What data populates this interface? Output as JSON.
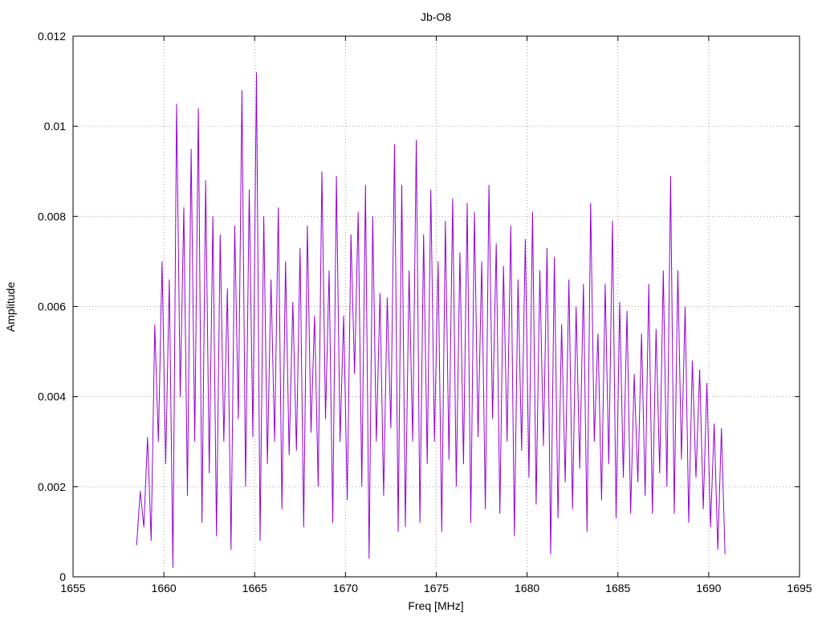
{
  "chart_data": {
    "type": "line",
    "title": "Jb-O8",
    "xlabel": "Freq [MHz]",
    "ylabel": "Amplitude",
    "xlim": [
      1655,
      1695
    ],
    "ylim": [
      0,
      0.012
    ],
    "xticks": [
      "1655",
      "1660",
      "1665",
      "1670",
      "1675",
      "1680",
      "1685",
      "1690",
      "1695"
    ],
    "xtick_values": [
      1655,
      1660,
      1665,
      1670,
      1675,
      1680,
      1685,
      1690,
      1695
    ],
    "yticks": [
      "0",
      "0.002",
      "0.004",
      "0.006",
      "0.008",
      "0.01",
      "0.012"
    ],
    "ytick_values": [
      0,
      0.002,
      0.004,
      0.006,
      0.008,
      0.01,
      0.012
    ],
    "grid": true,
    "series_color": "#9400d3",
    "series": [
      {
        "name": "Amplitude",
        "x_start": 1658.5,
        "x_step": 0.2,
        "values": [
          0.0007,
          0.0019,
          0.0011,
          0.0031,
          0.0008,
          0.0056,
          0.003,
          0.007,
          0.0025,
          0.0066,
          0.0002,
          0.0105,
          0.004,
          0.0082,
          0.0018,
          0.0095,
          0.003,
          0.0104,
          0.0012,
          0.0088,
          0.0023,
          0.008,
          0.0009,
          0.0076,
          0.003,
          0.0064,
          0.0006,
          0.0078,
          0.0035,
          0.0108,
          0.002,
          0.0086,
          0.0031,
          0.0112,
          0.0008,
          0.008,
          0.0025,
          0.0066,
          0.003,
          0.0082,
          0.0015,
          0.007,
          0.0027,
          0.0061,
          0.0028,
          0.0073,
          0.0011,
          0.0078,
          0.0032,
          0.0058,
          0.002,
          0.009,
          0.0035,
          0.0068,
          0.0012,
          0.0089,
          0.003,
          0.0058,
          0.0017,
          0.0076,
          0.0045,
          0.0081,
          0.002,
          0.0087,
          0.0004,
          0.008,
          0.003,
          0.0063,
          0.0018,
          0.0062,
          0.0033,
          0.0096,
          0.001,
          0.0087,
          0.0011,
          0.0068,
          0.003,
          0.0097,
          0.0012,
          0.0076,
          0.0025,
          0.0086,
          0.003,
          0.007,
          0.001,
          0.0079,
          0.0026,
          0.0084,
          0.002,
          0.0072,
          0.0025,
          0.0083,
          0.0012,
          0.0081,
          0.0031,
          0.007,
          0.0015,
          0.0087,
          0.0035,
          0.0074,
          0.0014,
          0.0069,
          0.003,
          0.0078,
          0.0009,
          0.0066,
          0.0028,
          0.0075,
          0.0022,
          0.0081,
          0.0016,
          0.0068,
          0.0029,
          0.0073,
          0.0005,
          0.0071,
          0.0013,
          0.0056,
          0.0021,
          0.0066,
          0.0015,
          0.006,
          0.0024,
          0.0065,
          0.001,
          0.0083,
          0.003,
          0.0054,
          0.0017,
          0.0065,
          0.0025,
          0.0079,
          0.0013,
          0.0061,
          0.0022,
          0.0059,
          0.0014,
          0.0045,
          0.0021,
          0.0054,
          0.0018,
          0.0065,
          0.0014,
          0.0055,
          0.0023,
          0.0068,
          0.002,
          0.0089,
          0.0014,
          0.0068,
          0.0026,
          0.006,
          0.0012,
          0.0048,
          0.0022,
          0.0046,
          0.0015,
          0.0043,
          0.0011,
          0.0034,
          0.0006,
          0.0033,
          0.0005
        ]
      }
    ]
  }
}
